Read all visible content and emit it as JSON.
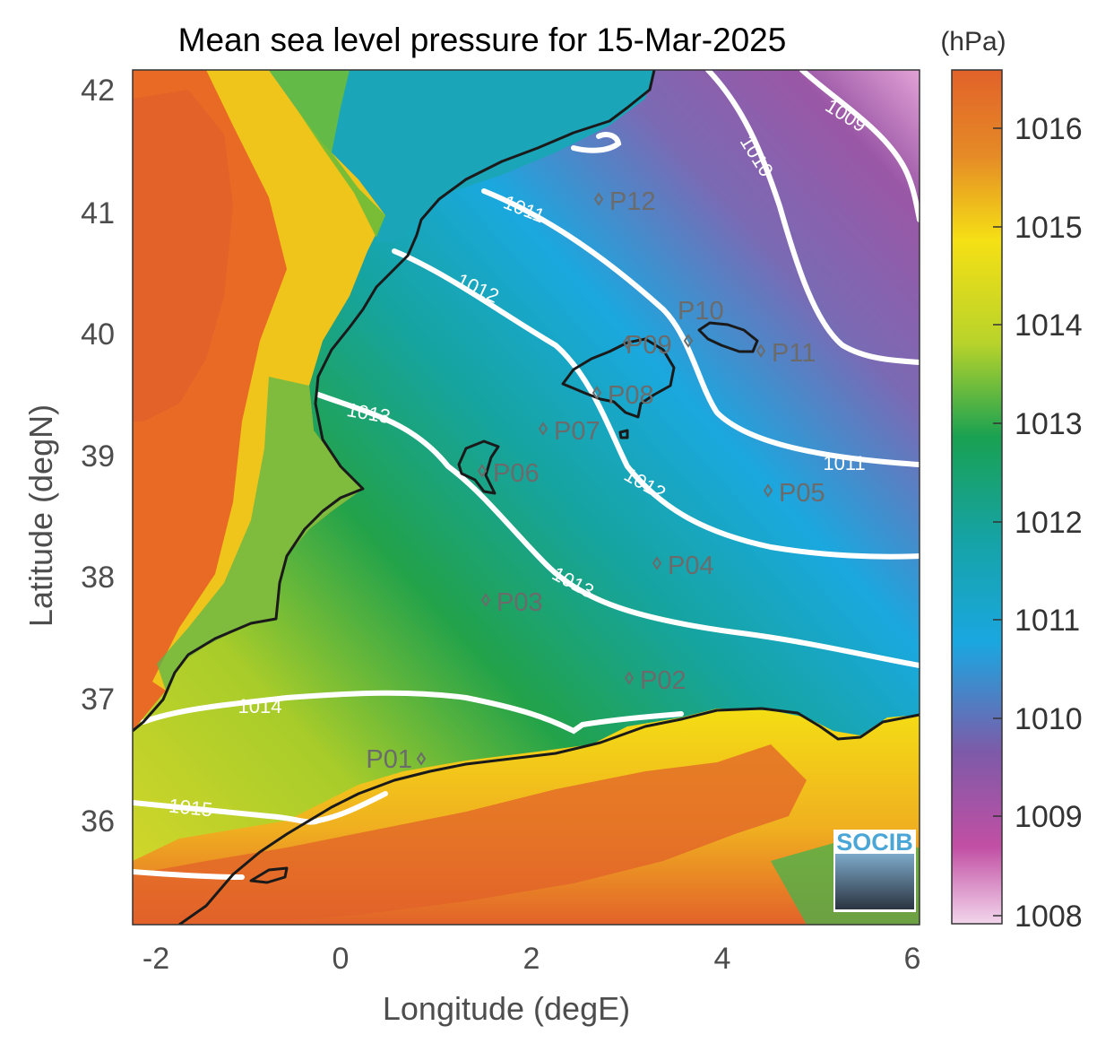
{
  "title": "Mean sea level pressure for 15-Mar-2025",
  "x_axis": {
    "label": "Longitude (degE)",
    "ticks": [
      "-2",
      "0",
      "2",
      "4",
      "6"
    ]
  },
  "y_axis": {
    "label": "Latitude (degN)",
    "ticks": [
      "42",
      "41",
      "40",
      "39",
      "38",
      "37",
      "36"
    ]
  },
  "colorbar": {
    "unit": "(hPa)",
    "ticks": [
      "1016",
      "1015",
      "1014",
      "1013",
      "1012",
      "1011",
      "1010",
      "1009",
      "1008"
    ]
  },
  "contours": [
    "1009",
    "1010",
    "1011",
    "1012",
    "1013",
    "1014",
    "1015"
  ],
  "points": [
    "P01",
    "P02",
    "P03",
    "P04",
    "P05",
    "P06",
    "P07",
    "P08",
    "P09",
    "P10",
    "P11",
    "P12"
  ],
  "logo": "SOCIB",
  "colors": {
    "land_high": "#e2622a",
    "yellow": "#f3e315",
    "green": "#1a9a4a",
    "teal": "#1aa3a3",
    "blue": "#1aa6df",
    "purple": "#8a5aa6",
    "magenta": "#c954a6",
    "contour": "#ffffff",
    "coastline": "#1a1a1a"
  }
}
